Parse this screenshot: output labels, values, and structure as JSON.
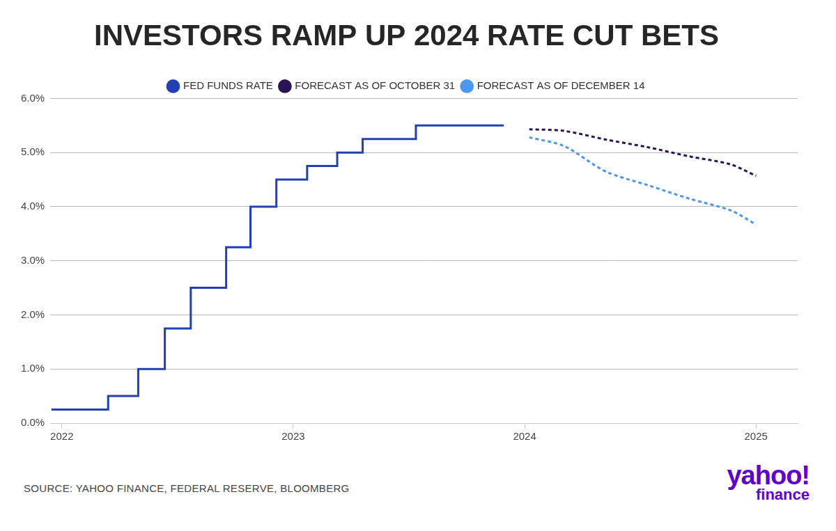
{
  "chart_data": {
    "type": "line",
    "title": "INVESTORS RAMP UP 2024 RATE CUT BETS",
    "source": "SOURCE: YAHOO FINANCE, FEDERAL RESERVE, BLOOMBERG",
    "brand": [
      "yahoo!",
      "finance"
    ],
    "legend": "top",
    "grid": "y",
    "xlim": [
      2021.95,
      2025.18
    ],
    "xticks": [
      2022,
      2023,
      2024,
      2025
    ],
    "ylim": [
      0,
      6
    ],
    "yticks": [
      {
        "value": 0,
        "label": "0.0%"
      },
      {
        "value": 1,
        "label": "1.0%"
      },
      {
        "value": 2,
        "label": "2.0%"
      },
      {
        "value": 3,
        "label": "3.0%"
      },
      {
        "value": 4,
        "label": "4.0%"
      },
      {
        "value": 5,
        "label": "5.0%"
      },
      {
        "value": 6,
        "label": "6.0%"
      }
    ],
    "series": [
      {
        "name": "FED FUNDS RATE",
        "color": "#2040b4",
        "type": "step",
        "line_style": "solid",
        "x": [
          2021.955,
          2022.2,
          2022.33,
          2022.445,
          2022.557,
          2022.71,
          2022.815,
          2022.927,
          2023.06,
          2023.19,
          2023.3,
          2023.53,
          2023.91
        ],
        "values": [
          0.25,
          0.5,
          1.0,
          1.75,
          2.5,
          3.25,
          4.0,
          4.5,
          4.75,
          5.0,
          5.25,
          5.5,
          5.5
        ]
      },
      {
        "name": "FORECAST AS OF OCTOBER 31",
        "color": "#2b1456",
        "type": "line",
        "line_style": "dashed",
        "x": [
          2024.02,
          2024.17,
          2024.35,
          2024.53,
          2024.71,
          2024.89,
          2025.0
        ],
        "values": [
          5.43,
          5.4,
          5.24,
          5.1,
          4.93,
          4.78,
          4.57
        ]
      },
      {
        "name": "FORECAST AS OF DECEMBER 14",
        "color": "#4c97ef",
        "type": "line",
        "line_style": "dashed",
        "x": [
          2024.02,
          2024.17,
          2024.35,
          2024.53,
          2024.71,
          2024.89,
          2025.0
        ],
        "values": [
          5.28,
          5.12,
          4.65,
          4.4,
          4.15,
          3.93,
          3.67
        ]
      }
    ]
  }
}
